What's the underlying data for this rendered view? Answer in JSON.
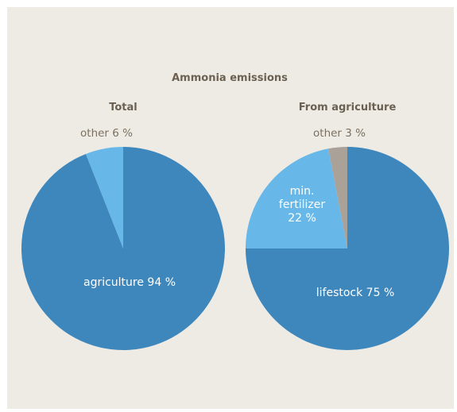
{
  "chart_title": "Ammonia emissions",
  "chart_data": [
    {
      "type": "pie",
      "title": "Total",
      "slices": [
        {
          "label": "agriculture",
          "value": 94,
          "display": "agriculture 94 %",
          "color": "#3e87bc",
          "label_style": "inside"
        },
        {
          "label": "other",
          "value": 6,
          "display": "other 6 %",
          "color": "#67b8e8",
          "label_style": "outside"
        }
      ]
    },
    {
      "type": "pie",
      "title": "From agriculture",
      "slices": [
        {
          "label": "lifestock",
          "value": 75,
          "display": "lifestock 75 %",
          "color": "#3e87bc",
          "label_style": "inside"
        },
        {
          "label": "min. fertilizer",
          "value": 22,
          "display": [
            "min.",
            "fertilizer",
            "22 %"
          ],
          "color": "#67b8e8",
          "label_style": "inside"
        },
        {
          "label": "other",
          "value": 3,
          "display": "other 3 %",
          "color": "#aaa198",
          "label_style": "outside"
        }
      ]
    }
  ],
  "colors": {
    "background": "#eeebe5",
    "text": "#6b6152"
  }
}
